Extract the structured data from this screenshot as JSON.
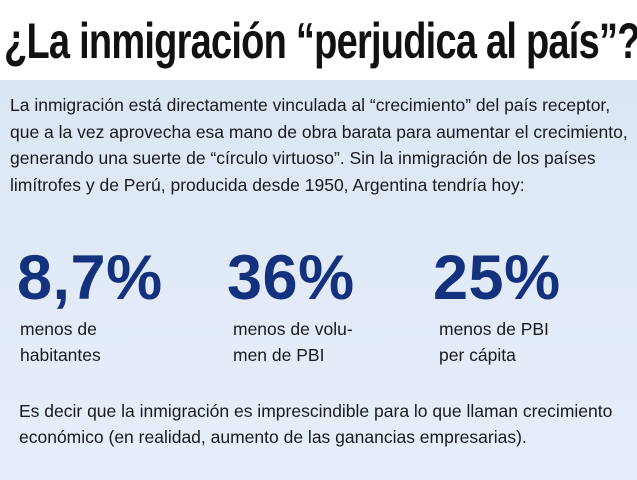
{
  "article": {
    "title": "¿La inmigración “perjudica al país”?",
    "intro": "La inmigración está directamente vinculada al “crecimiento” del país receptor, que a la vez aprovecha esa mano de obra barata para aumentar el crecimiento, generando una suerte de “círculo virtuoso”. Sin la inmigración de los países limítrofes y de Perú, producida desde 1950, Argentina tendría hoy:",
    "stats": [
      {
        "value": "8,7%",
        "label": "menos de\nhabitantes"
      },
      {
        "value": "36%",
        "label": "menos de volu-\nmen de PBI"
      },
      {
        "value": "25%",
        "label": "menos de PBI\nper cápita"
      }
    ],
    "conclusion": "Es decir que la inmigración es imprescindible para lo que llaman crecimiento económico (en realidad, aumento de las ganancias empresarias)."
  },
  "colors": {
    "stat_value": "#13317d",
    "background": "#dfe9f6",
    "title_band": "#ffffff",
    "text": "#1a1a1a"
  }
}
